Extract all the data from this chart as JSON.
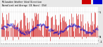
{
  "title": "Milwaukee Weather Wind Direction",
  "subtitle": "Normalized and Average (24 Hours) (Old)",
  "background_color": "#e8e8e8",
  "plot_bg_color": "#ffffff",
  "grid_color": "#bbbbbb",
  "bar_color": "#cc0000",
  "line_color": "#0000cc",
  "y_ticks": [
    -1,
    0,
    5
  ],
  "y_labels": [
    "-1",
    "N",
    "5"
  ],
  "ylim": [
    -1.5,
    6.0
  ],
  "num_points": 144,
  "legend_colors": [
    "#cc0000",
    "#0000cc"
  ],
  "bar_seed": 42,
  "avg_seed": 99
}
